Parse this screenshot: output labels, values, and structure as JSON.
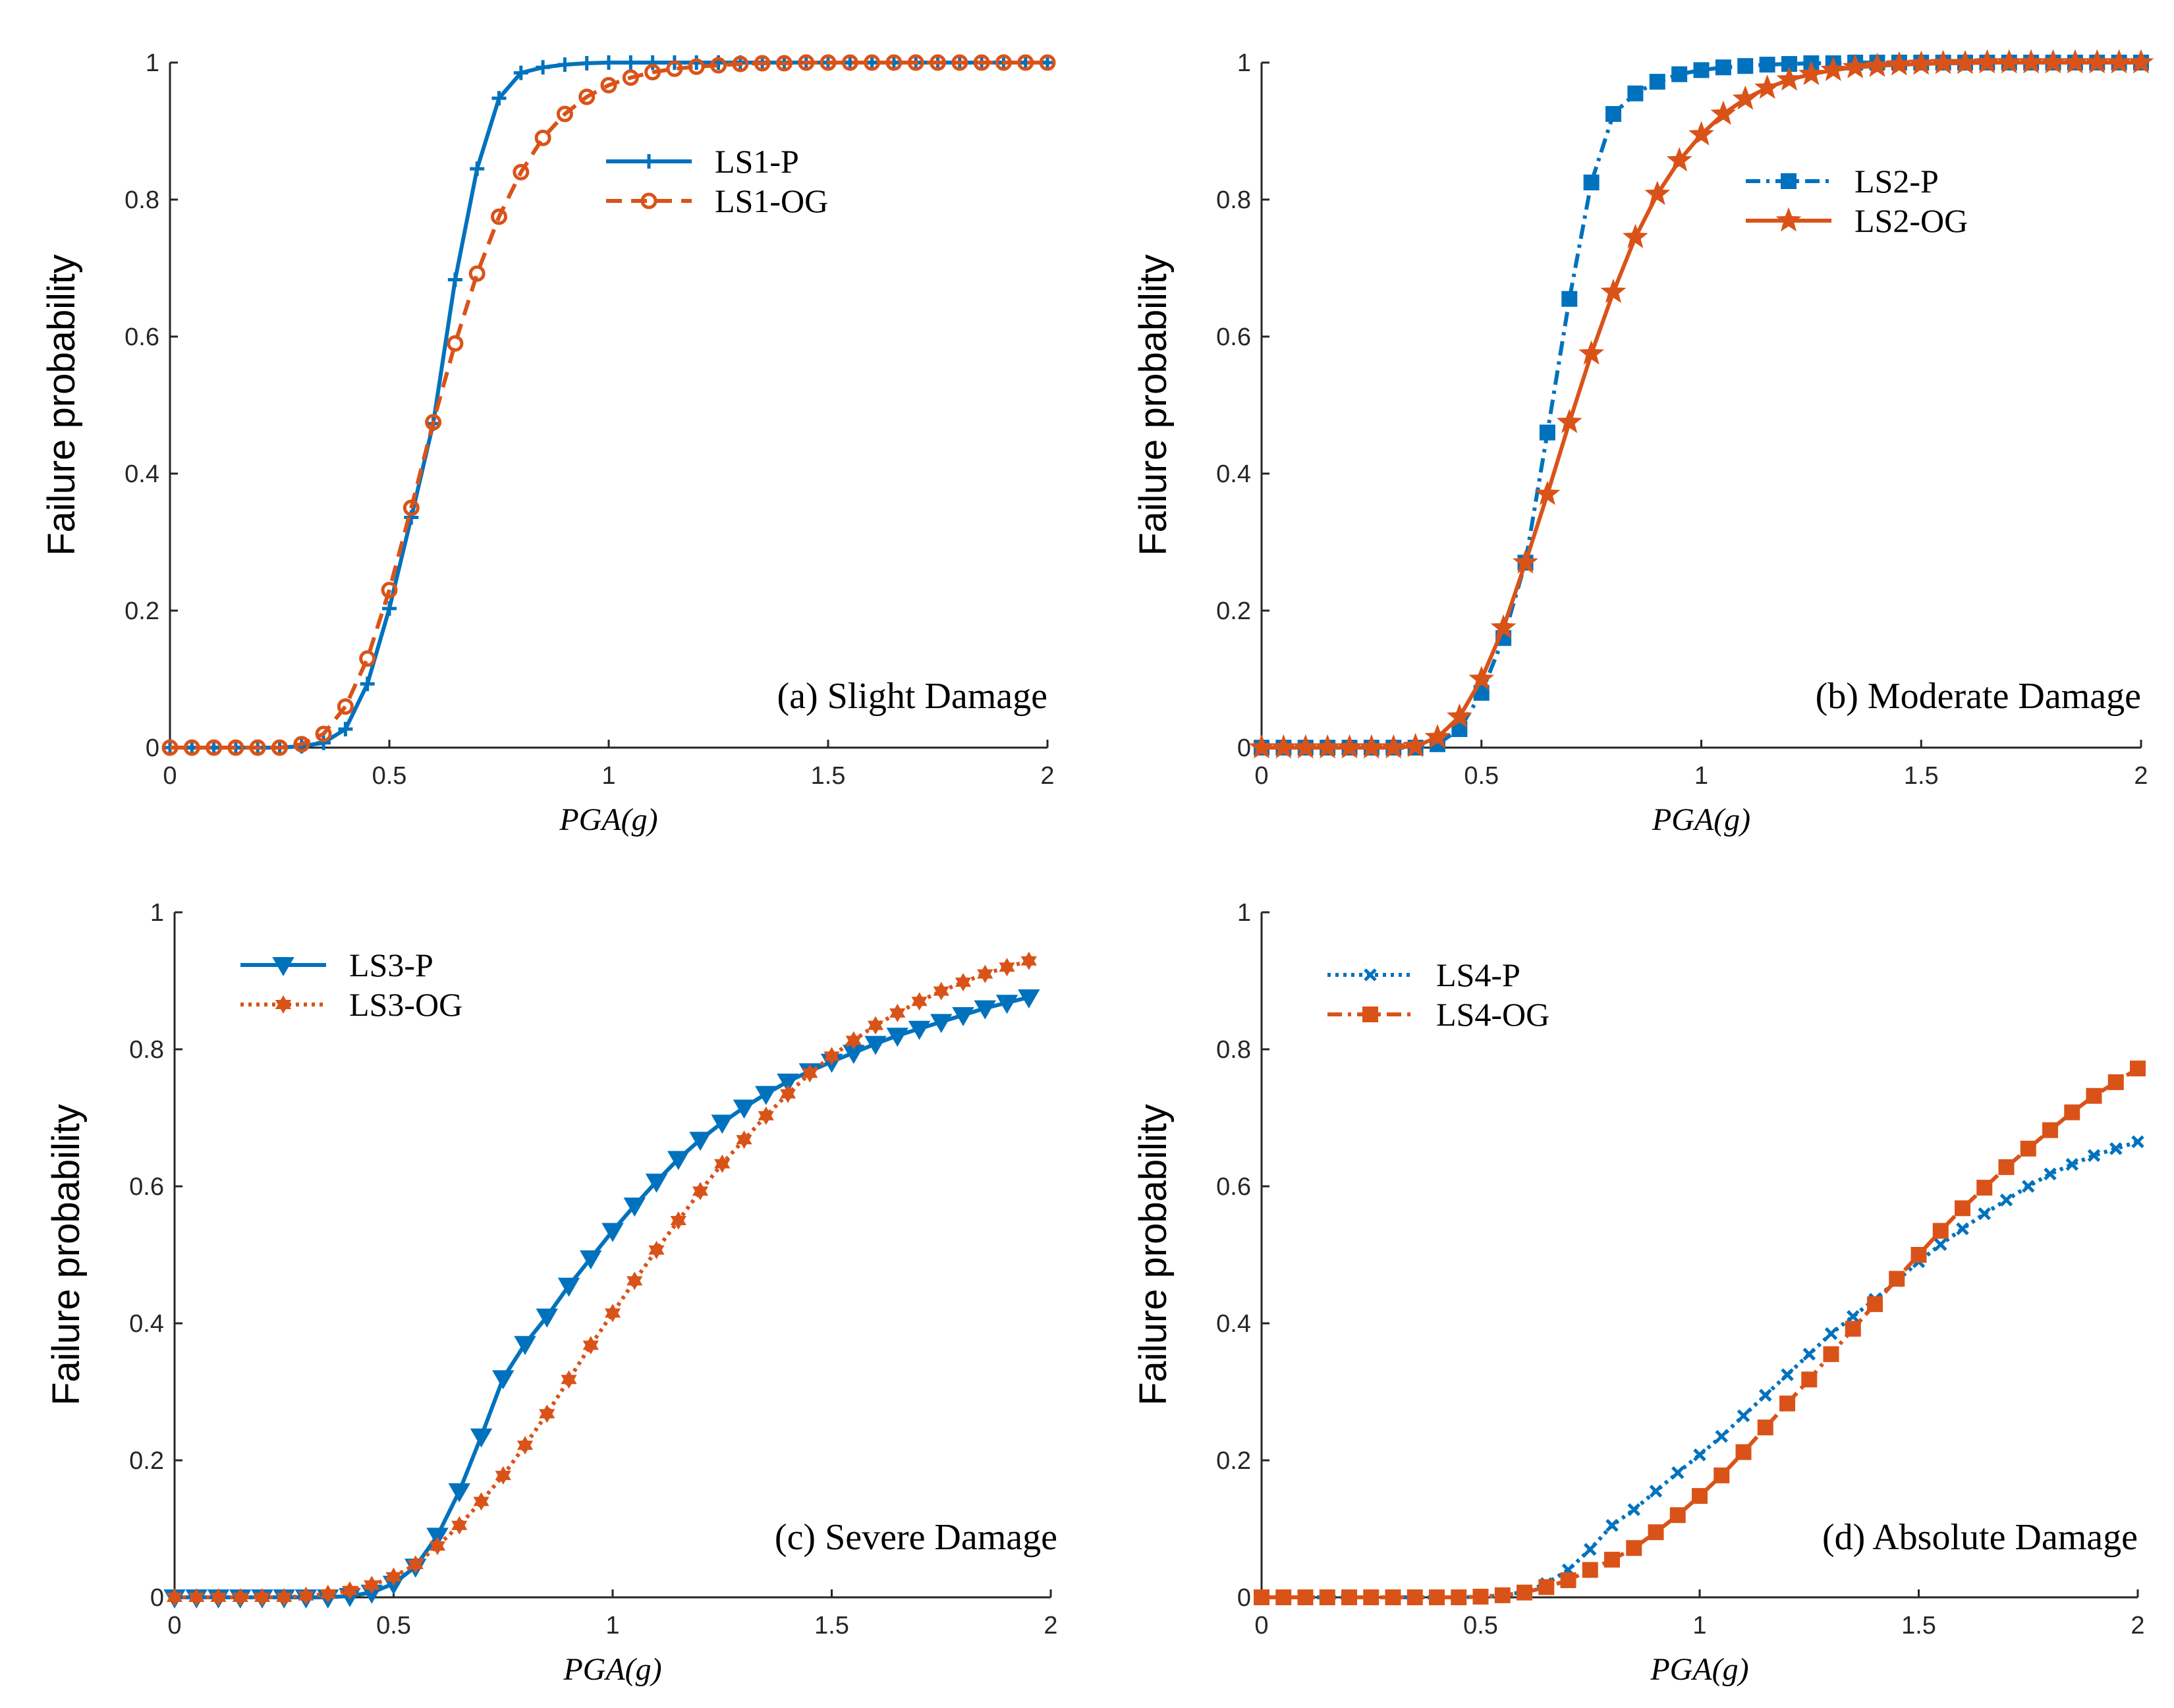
{
  "colors": {
    "blue": "#0072BD",
    "orange": "#D95319",
    "axis": "#262626"
  },
  "chart_data": [
    {
      "type": "line",
      "annotation": "(a) Slight Damage",
      "xlabel": "PGA(g)",
      "ylabel": "Failure probability",
      "xlim": [
        0,
        2
      ],
      "ylim": [
        0,
        1
      ],
      "xticks": [
        "0",
        "0.5",
        "1",
        "1.5",
        "2"
      ],
      "yticks": [
        "0",
        "0.2",
        "0.4",
        "0.6",
        "0.8",
        "1"
      ],
      "legend_position": "upper-middle",
      "x": [
        0,
        0.05,
        0.1,
        0.15,
        0.2,
        0.25,
        0.3,
        0.35,
        0.4,
        0.45,
        0.5,
        0.55,
        0.6,
        0.65,
        0.7,
        0.75,
        0.8,
        0.85,
        0.9,
        0.95,
        1,
        1.05,
        1.1,
        1.15,
        1.2,
        1.25,
        1.3,
        1.35,
        1.4,
        1.45,
        1.5,
        1.55,
        1.6,
        1.65,
        1.7,
        1.75,
        1.8,
        1.85,
        1.9,
        1.95,
        2
      ],
      "series": [
        {
          "name": "LS1-P",
          "color": "#0072BD",
          "dash": "solid",
          "marker": "plus",
          "values": [
            0,
            0,
            0,
            0,
            0,
            0,
            0.002,
            0.007,
            0.027,
            0.093,
            0.203,
            0.336,
            0.473,
            0.683,
            0.845,
            0.948,
            0.985,
            0.993,
            0.997,
            0.999,
            1,
            1,
            1,
            1,
            1,
            1,
            1,
            1,
            1,
            1,
            1,
            1,
            1,
            1,
            1,
            1,
            1,
            1,
            1,
            1,
            1
          ]
        },
        {
          "name": "LS1-OG",
          "color": "#D95319",
          "dash": "dashed",
          "marker": "circle",
          "values": [
            0,
            0,
            0,
            0,
            0,
            0,
            0.005,
            0.02,
            0.06,
            0.13,
            0.23,
            0.35,
            0.475,
            0.59,
            0.692,
            0.775,
            0.84,
            0.89,
            0.925,
            0.95,
            0.967,
            0.978,
            0.986,
            0.991,
            0.994,
            0.996,
            0.998,
            0.999,
            0.999,
            1,
            1,
            1,
            1,
            1,
            1,
            1,
            1,
            1,
            1,
            1,
            1
          ]
        }
      ]
    },
    {
      "type": "line",
      "annotation": "(b) Moderate Damage",
      "xlabel": "PGA(g)",
      "ylabel": "Failure probability",
      "xlim": [
        0,
        2
      ],
      "ylim": [
        0,
        1
      ],
      "xticks": [
        "0",
        "0.5",
        "1",
        "1.5",
        "2"
      ],
      "yticks": [
        "0",
        "0.2",
        "0.4",
        "0.6",
        "0.8",
        "1"
      ],
      "legend_position": "upper-middle",
      "x": [
        0,
        0.05,
        0.1,
        0.15,
        0.2,
        0.25,
        0.3,
        0.35,
        0.4,
        0.45,
        0.5,
        0.55,
        0.6,
        0.65,
        0.7,
        0.75,
        0.8,
        0.85,
        0.9,
        0.95,
        1,
        1.05,
        1.1,
        1.15,
        1.2,
        1.25,
        1.3,
        1.35,
        1.4,
        1.45,
        1.5,
        1.55,
        1.6,
        1.65,
        1.7,
        1.75,
        1.8,
        1.85,
        1.9,
        1.95,
        2
      ],
      "series": [
        {
          "name": "LS2-P",
          "color": "#0072BD",
          "dash": "dashdot",
          "marker": "square",
          "values": [
            0,
            0,
            0,
            0,
            0,
            0,
            0,
            0,
            0.005,
            0.027,
            0.08,
            0.16,
            0.27,
            0.46,
            0.655,
            0.825,
            0.925,
            0.955,
            0.972,
            0.983,
            0.989,
            0.993,
            0.995,
            0.997,
            0.998,
            0.999,
            0.999,
            1,
            1,
            1,
            1,
            1,
            1,
            1,
            1,
            1,
            1,
            1,
            1,
            1,
            1
          ]
        },
        {
          "name": "LS2-OG",
          "color": "#D95319",
          "dash": "solid",
          "marker": "star",
          "values": [
            0,
            0,
            0,
            0,
            0,
            0,
            0,
            0.002,
            0.015,
            0.045,
            0.1,
            0.175,
            0.27,
            0.37,
            0.475,
            0.575,
            0.665,
            0.745,
            0.808,
            0.857,
            0.895,
            0.925,
            0.947,
            0.963,
            0.975,
            0.983,
            0.989,
            0.993,
            0.995,
            0.997,
            0.998,
            0.999,
            0.999,
            1,
            1,
            1,
            1,
            1,
            1,
            1,
            1
          ]
        }
      ]
    },
    {
      "type": "line",
      "annotation": "(c) Severe Damage",
      "xlabel": "PGA(g)",
      "ylabel": "Failure probability",
      "xlim": [
        0,
        2
      ],
      "ylim": [
        0,
        1
      ],
      "xticks": [
        "0",
        "0.5",
        "1",
        "1.5",
        "2"
      ],
      "yticks": [
        "0",
        "0.2",
        "0.4",
        "0.6",
        "0.8",
        "1"
      ],
      "legend_position": "upper-left",
      "x": [
        0,
        0.05,
        0.1,
        0.15,
        0.2,
        0.25,
        0.3,
        0.35,
        0.4,
        0.45,
        0.5,
        0.55,
        0.6,
        0.65,
        0.7,
        0.75,
        0.8,
        0.85,
        0.9,
        0.95,
        1,
        1.05,
        1.1,
        1.15,
        1.2,
        1.25,
        1.3,
        1.35,
        1.4,
        1.45,
        1.5,
        1.55,
        1.6,
        1.65,
        1.7,
        1.75,
        1.8,
        1.85,
        1.9,
        1.95
      ],
      "series": [
        {
          "name": "LS3-P",
          "color": "#0072BD",
          "dash": "solid",
          "marker": "triangle-down",
          "values": [
            0,
            0,
            0,
            0,
            0,
            0,
            0,
            0,
            0.002,
            0.007,
            0.02,
            0.045,
            0.09,
            0.155,
            0.235,
            0.32,
            0.37,
            0.41,
            0.455,
            0.495,
            0.535,
            0.572,
            0.607,
            0.64,
            0.668,
            0.693,
            0.715,
            0.735,
            0.753,
            0.768,
            0.782,
            0.795,
            0.808,
            0.82,
            0.83,
            0.84,
            0.85,
            0.86,
            0.868,
            0.876
          ]
        },
        {
          "name": "LS3-OG",
          "color": "#D95319",
          "dash": "dotted",
          "marker": "hexagram",
          "values": [
            0,
            0,
            0,
            0,
            0,
            0,
            0.002,
            0.005,
            0.01,
            0.018,
            0.03,
            0.048,
            0.075,
            0.105,
            0.14,
            0.178,
            0.222,
            0.268,
            0.318,
            0.368,
            0.415,
            0.462,
            0.507,
            0.55,
            0.593,
            0.633,
            0.668,
            0.703,
            0.735,
            0.765,
            0.79,
            0.813,
            0.835,
            0.853,
            0.87,
            0.885,
            0.898,
            0.91,
            0.92,
            0.929
          ]
        }
      ]
    },
    {
      "type": "line",
      "annotation": "(d) Absolute Damage",
      "xlabel": "PGA(g)",
      "ylabel": "Failure probability",
      "xlim": [
        0,
        2
      ],
      "ylim": [
        0,
        1
      ],
      "xticks": [
        "0",
        "0.5",
        "1",
        "1.5",
        "2"
      ],
      "yticks": [
        "0",
        "0.2",
        "0.4",
        "0.6",
        "0.8",
        "1"
      ],
      "legend_position": "upper-left",
      "x": [
        0,
        0.05,
        0.1,
        0.15,
        0.2,
        0.25,
        0.3,
        0.35,
        0.4,
        0.45,
        0.5,
        0.55,
        0.6,
        0.65,
        0.7,
        0.75,
        0.8,
        0.85,
        0.9,
        0.95,
        1,
        1.05,
        1.1,
        1.15,
        1.2,
        1.25,
        1.3,
        1.35,
        1.4,
        1.45,
        1.5,
        1.55,
        1.6,
        1.65,
        1.7,
        1.75,
        1.8,
        1.85,
        1.9,
        1.95,
        2
      ],
      "series": [
        {
          "name": "LS4-P",
          "color": "#0072BD",
          "dash": "dotted",
          "marker": "x",
          "values": [
            0,
            0,
            0,
            0,
            0,
            0,
            0,
            0,
            0,
            0,
            0.001,
            0.003,
            0.008,
            0.02,
            0.04,
            0.07,
            0.105,
            0.128,
            0.155,
            0.182,
            0.208,
            0.235,
            0.265,
            0.295,
            0.325,
            0.355,
            0.385,
            0.41,
            0.435,
            0.462,
            0.49,
            0.515,
            0.538,
            0.56,
            0.58,
            0.6,
            0.618,
            0.632,
            0.645,
            0.655,
            0.665
          ]
        },
        {
          "name": "LS4-OG",
          "color": "#D95319",
          "dash": "dashdot",
          "marker": "square",
          "values": [
            0,
            0,
            0,
            0,
            0,
            0,
            0,
            0,
            0,
            0,
            0.001,
            0.003,
            0.007,
            0.015,
            0.025,
            0.04,
            0.055,
            0.072,
            0.095,
            0.12,
            0.148,
            0.178,
            0.212,
            0.248,
            0.283,
            0.318,
            0.355,
            0.392,
            0.428,
            0.465,
            0.5,
            0.535,
            0.568,
            0.598,
            0.628,
            0.655,
            0.682,
            0.708,
            0.732,
            0.752,
            0.772
          ]
        }
      ]
    }
  ]
}
